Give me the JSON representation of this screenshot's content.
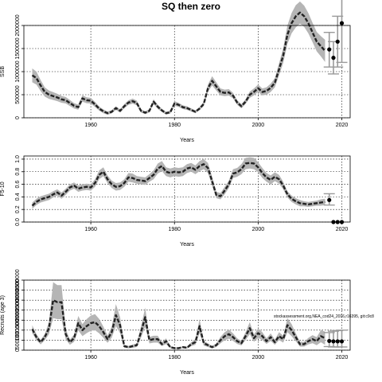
{
  "title": "SQ then zero",
  "annotation": "stockassessment.org,NEA_cod24_2016,r16395, git:c9c8",
  "chart_data": [
    {
      "type": "line",
      "id": "ssb",
      "ylabel": "SSB",
      "xlabel": "Years",
      "xlim": [
        1944,
        2022
      ],
      "ylim": [
        0,
        2000000
      ],
      "xticks": [
        1960,
        1980,
        2000,
        2020
      ],
      "xtick_labels": [
        "1960",
        "1980",
        "2000",
        "2020"
      ],
      "yticks": [
        0,
        500000,
        1000000,
        1500000,
        2000000
      ],
      "ytick_labels": [
        "0",
        "500000",
        "1000000",
        "1500000",
        "2000000"
      ],
      "grid": true,
      "series_years": [
        1946,
        1947,
        1948,
        1949,
        1950,
        1951,
        1952,
        1953,
        1954,
        1955,
        1956,
        1957,
        1958,
        1959,
        1960,
        1961,
        1962,
        1963,
        1964,
        1965,
        1966,
        1967,
        1968,
        1969,
        1970,
        1971,
        1972,
        1973,
        1974,
        1975,
        1976,
        1977,
        1978,
        1979,
        1980,
        1981,
        1982,
        1983,
        1984,
        1985,
        1986,
        1987,
        1988,
        1989,
        1990,
        1991,
        1992,
        1993,
        1994,
        1995,
        1996,
        1997,
        1998,
        1999,
        2000,
        2001,
        2002,
        2003,
        2004,
        2005,
        2006,
        2007,
        2008,
        2009,
        2010,
        2011,
        2012,
        2013,
        2014,
        2015,
        2016
      ],
      "values": [
        920000,
        860000,
        700000,
        560000,
        500000,
        470000,
        440000,
        400000,
        380000,
        320000,
        260000,
        230000,
        420000,
        380000,
        370000,
        290000,
        200000,
        140000,
        100000,
        130000,
        210000,
        150000,
        250000,
        330000,
        360000,
        320000,
        150000,
        110000,
        150000,
        350000,
        240000,
        160000,
        100000,
        120000,
        310000,
        280000,
        230000,
        210000,
        170000,
        130000,
        200000,
        300000,
        640000,
        800000,
        680000,
        560000,
        540000,
        550000,
        480000,
        330000,
        250000,
        350000,
        500000,
        560000,
        640000,
        560000,
        580000,
        650000,
        760000,
        1050000,
        1350000,
        1800000,
        2050000,
        2200000,
        2280000,
        2200000,
        2050000,
        1850000,
        1650000,
        1550000,
        1450000
      ],
      "band_halfwidth": [
        150000,
        140000,
        120000,
        100000,
        90000,
        85000,
        80000,
        75000,
        70000,
        65000,
        60000,
        55000,
        70000,
        65000,
        60000,
        55000,
        45000,
        40000,
        35000,
        35000,
        40000,
        35000,
        45000,
        50000,
        55000,
        50000,
        35000,
        30000,
        35000,
        50000,
        45000,
        35000,
        30000,
        30000,
        50000,
        45000,
        40000,
        40000,
        35000,
        30000,
        35000,
        45000,
        80000,
        100000,
        90000,
        75000,
        70000,
        70000,
        60000,
        50000,
        45000,
        50000,
        70000,
        75000,
        80000,
        75000,
        80000,
        90000,
        100000,
        130000,
        160000,
        200000,
        220000,
        240000,
        240000,
        230000,
        220000,
        210000,
        210000,
        220000,
        240000
      ],
      "forecast_points": [
        {
          "year": 2017,
          "value": 1480000
        },
        {
          "year": 2018,
          "value": 1300000
        },
        {
          "year": 2019,
          "value": 1650000
        },
        {
          "year": 2020,
          "value": 2050000
        }
      ],
      "forecast_intervals": [
        {
          "year": 2017,
          "low": 1100000,
          "high": 1850000
        },
        {
          "year": 2018,
          "low": 950000,
          "high": 1650000
        },
        {
          "year": 2019,
          "low": 1100000,
          "high": 2200000
        },
        {
          "year": 2020,
          "low": 1200000,
          "high": 2950000
        }
      ]
    },
    {
      "type": "line",
      "id": "f",
      "ylabel": "F5-10",
      "xlabel": "Years",
      "xlim": [
        1944,
        2022
      ],
      "ylim": [
        0,
        1.05
      ],
      "xticks": [
        1960,
        1980,
        2000,
        2020
      ],
      "xtick_labels": [
        "1960",
        "1980",
        "2000",
        "2020"
      ],
      "yticks": [
        0,
        0.2,
        0.4,
        0.6,
        0.8,
        1.0
      ],
      "ytick_labels": [
        "0.0",
        "0.2",
        "0.4",
        "0.6",
        "0.8",
        "1.0"
      ],
      "grid": true,
      "series_years": [
        1946,
        1947,
        1948,
        1949,
        1950,
        1951,
        1952,
        1953,
        1954,
        1955,
        1956,
        1957,
        1958,
        1959,
        1960,
        1961,
        1962,
        1963,
        1964,
        1965,
        1966,
        1967,
        1968,
        1969,
        1970,
        1971,
        1972,
        1973,
        1974,
        1975,
        1976,
        1977,
        1978,
        1979,
        1980,
        1981,
        1982,
        1983,
        1984,
        1985,
        1986,
        1987,
        1988,
        1989,
        1990,
        1991,
        1992,
        1993,
        1994,
        1995,
        1996,
        1997,
        1998,
        1999,
        2000,
        2001,
        2002,
        2003,
        2004,
        2005,
        2006,
        2007,
        2008,
        2009,
        2010,
        2011,
        2012,
        2013,
        2014,
        2015,
        2016
      ],
      "values": [
        0.26,
        0.32,
        0.36,
        0.38,
        0.4,
        0.44,
        0.47,
        0.42,
        0.48,
        0.55,
        0.58,
        0.53,
        0.55,
        0.56,
        0.55,
        0.62,
        0.75,
        0.8,
        0.68,
        0.6,
        0.56,
        0.57,
        0.62,
        0.71,
        0.7,
        0.67,
        0.66,
        0.65,
        0.7,
        0.75,
        0.85,
        0.89,
        0.8,
        0.78,
        0.8,
        0.79,
        0.8,
        0.85,
        0.87,
        0.83,
        0.89,
        0.92,
        0.86,
        0.65,
        0.43,
        0.41,
        0.5,
        0.6,
        0.77,
        0.79,
        0.84,
        0.93,
        0.94,
        0.93,
        0.87,
        0.78,
        0.71,
        0.67,
        0.72,
        0.68,
        0.58,
        0.44,
        0.37,
        0.33,
        0.3,
        0.29,
        0.28,
        0.29,
        0.3,
        0.31,
        0.32
      ],
      "band_halfwidth": [
        0.05,
        0.05,
        0.05,
        0.05,
        0.05,
        0.05,
        0.05,
        0.05,
        0.05,
        0.05,
        0.05,
        0.05,
        0.05,
        0.05,
        0.05,
        0.06,
        0.07,
        0.07,
        0.06,
        0.06,
        0.06,
        0.06,
        0.06,
        0.07,
        0.07,
        0.06,
        0.06,
        0.06,
        0.06,
        0.07,
        0.08,
        0.08,
        0.07,
        0.07,
        0.07,
        0.07,
        0.07,
        0.07,
        0.07,
        0.07,
        0.08,
        0.08,
        0.08,
        0.07,
        0.05,
        0.05,
        0.06,
        0.06,
        0.07,
        0.07,
        0.08,
        0.09,
        0.09,
        0.09,
        0.08,
        0.08,
        0.07,
        0.07,
        0.07,
        0.07,
        0.06,
        0.05,
        0.05,
        0.05,
        0.05,
        0.04,
        0.04,
        0.04,
        0.04,
        0.05,
        0.05
      ],
      "forecast_points": [
        {
          "year": 2017,
          "value": 0.35
        },
        {
          "year": 2018,
          "value": 0.0
        },
        {
          "year": 2019,
          "value": 0.0
        },
        {
          "year": 2020,
          "value": 0.0
        }
      ],
      "forecast_intervals": [
        {
          "year": 2017,
          "low": 0.27,
          "high": 0.45
        }
      ]
    },
    {
      "type": "line",
      "id": "recruitment",
      "ylabel": "Recruits (age 3)",
      "xlabel": "Years",
      "xlim": [
        1944,
        2022
      ],
      "ylim": [
        0,
        3500000
      ],
      "xticks": [
        1960,
        1980,
        2000,
        2020
      ],
      "xtick_labels": [
        "1960",
        "1980",
        "2000",
        "2020"
      ],
      "yticks": [
        0,
        500000,
        1000000,
        1500000,
        2000000,
        2500000,
        3000000,
        3500000
      ],
      "ytick_labels": [
        "0",
        "500000",
        "1000000",
        "1500000",
        "2000000",
        "2500000",
        "3000000",
        "3500000"
      ],
      "grid": true,
      "series_years": [
        1946,
        1947,
        1948,
        1949,
        1950,
        1951,
        1952,
        1953,
        1954,
        1955,
        1956,
        1957,
        1958,
        1959,
        1960,
        1961,
        1962,
        1963,
        1964,
        1965,
        1966,
        1967,
        1968,
        1969,
        1970,
        1971,
        1972,
        1973,
        1974,
        1975,
        1976,
        1977,
        1978,
        1979,
        1980,
        1981,
        1982,
        1983,
        1984,
        1985,
        1986,
        1987,
        1988,
        1989,
        1990,
        1991,
        1992,
        1993,
        1994,
        1995,
        1996,
        1997,
        1998,
        1999,
        2000,
        2001,
        2002,
        2003,
        2004,
        2005,
        2006,
        2007,
        2008,
        2009,
        2010,
        2011,
        2012,
        2013,
        2014,
        2015,
        2016
      ],
      "values": [
        1050000,
        650000,
        400000,
        650000,
        1100000,
        2500000,
        2400000,
        2400000,
        800000,
        400000,
        600000,
        1350000,
        1000000,
        1200000,
        1350000,
        1400000,
        1200000,
        900000,
        550000,
        900000,
        1750000,
        1250000,
        200000,
        150000,
        200000,
        250000,
        900000,
        1650000,
        500000,
        550000,
        550000,
        300000,
        450000,
        150000,
        100000,
        100000,
        150000,
        120000,
        300000,
        400000,
        1200000,
        350000,
        250000,
        150000,
        250000,
        500000,
        700000,
        800000,
        650000,
        450000,
        350000,
        700000,
        1100000,
        600000,
        850000,
        700000,
        450000,
        650000,
        400000,
        700000,
        550000,
        1250000,
        1000000,
        650000,
        300000,
        300000,
        450000,
        550000,
        450000,
        700000,
        600000
      ],
      "band_halfwidth": [
        200000,
        150000,
        110000,
        160000,
        300000,
        900000,
        850000,
        850000,
        260000,
        130000,
        180000,
        360000,
        300000,
        350000,
        380000,
        400000,
        360000,
        280000,
        180000,
        280000,
        550000,
        400000,
        80000,
        60000,
        80000,
        90000,
        280000,
        480000,
        160000,
        170000,
        170000,
        100000,
        140000,
        60000,
        40000,
        40000,
        50000,
        45000,
        100000,
        130000,
        350000,
        120000,
        90000,
        60000,
        90000,
        160000,
        200000,
        230000,
        190000,
        140000,
        110000,
        200000,
        300000,
        180000,
        240000,
        200000,
        140000,
        190000,
        130000,
        200000,
        170000,
        350000,
        300000,
        200000,
        120000,
        120000,
        160000,
        200000,
        200000,
        300000,
        330000
      ],
      "forecast_points": [
        {
          "year": 2017,
          "value": 460000
        },
        {
          "year": 2018,
          "value": 440000
        },
        {
          "year": 2019,
          "value": 440000
        },
        {
          "year": 2020,
          "value": 440000
        }
      ],
      "forecast_intervals": [
        {
          "year": 2017,
          "low": 180000,
          "high": 880000
        },
        {
          "year": 2018,
          "low": 160000,
          "high": 950000
        },
        {
          "year": 2019,
          "low": 160000,
          "high": 980000
        },
        {
          "year": 2020,
          "low": 160000,
          "high": 1000000
        }
      ]
    }
  ]
}
